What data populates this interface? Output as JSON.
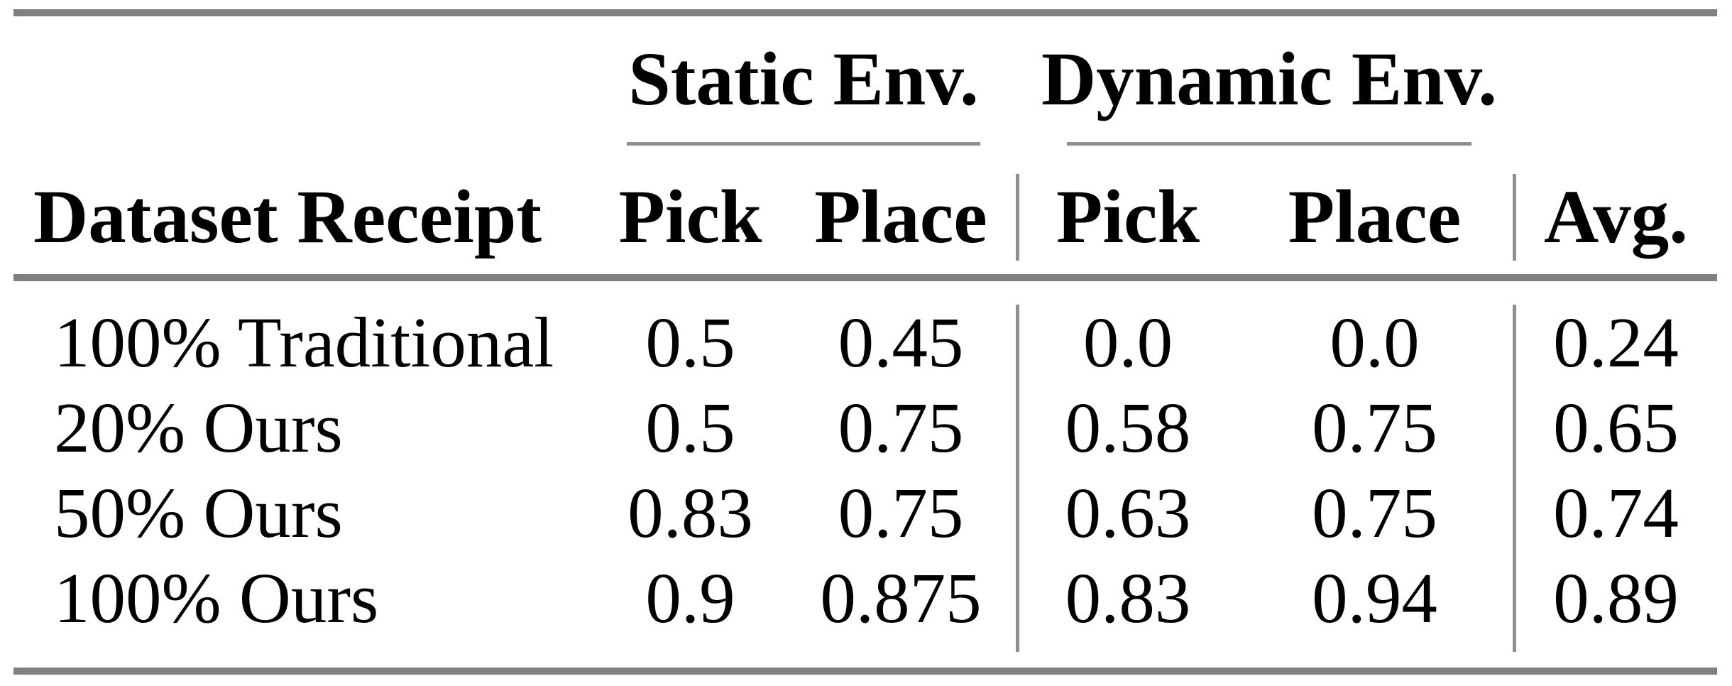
{
  "table": {
    "group_headers": [
      {
        "label": "Static Env."
      },
      {
        "label": "Dynamic Env."
      }
    ],
    "columns": [
      "Dataset Receipt",
      "Pick",
      "Place",
      "Pick",
      "Place",
      "Avg."
    ],
    "rows": [
      {
        "label": "100% Traditional",
        "values": [
          "0.5",
          "0.45",
          "0.0",
          "0.0",
          "0.24"
        ]
      },
      {
        "label": "20% Ours",
        "values": [
          "0.5",
          "0.75",
          "0.58",
          "0.75",
          "0.65"
        ]
      },
      {
        "label": "50% Ours",
        "values": [
          "0.83",
          "0.75",
          "0.63",
          "0.75",
          "0.74"
        ]
      },
      {
        "label": "100% Ours",
        "values": [
          "0.9",
          "0.875",
          "0.83",
          "0.94",
          "0.89"
        ]
      }
    ]
  },
  "colors": {
    "thick_rule": "#808080",
    "thin_rule": "#8f8f8f",
    "text": "#000000",
    "background": "#ffffff"
  },
  "chart_data": {
    "type": "table",
    "title": "",
    "column_groups": [
      {
        "label": "Static Env.",
        "columns": [
          "Pick",
          "Place"
        ]
      },
      {
        "label": "Dynamic Env.",
        "columns": [
          "Pick",
          "Place"
        ]
      }
    ],
    "columns": [
      "Dataset Receipt",
      "Static Pick",
      "Static Place",
      "Dynamic Pick",
      "Dynamic Place",
      "Avg."
    ],
    "rows": [
      [
        "100% Traditional",
        0.5,
        0.45,
        0.0,
        0.0,
        0.24
      ],
      [
        "20% Ours",
        0.5,
        0.75,
        0.58,
        0.75,
        0.65
      ],
      [
        "50% Ours",
        0.83,
        0.75,
        0.63,
        0.75,
        0.74
      ],
      [
        "100% Ours",
        0.9,
        0.875,
        0.83,
        0.94,
        0.89
      ]
    ]
  }
}
